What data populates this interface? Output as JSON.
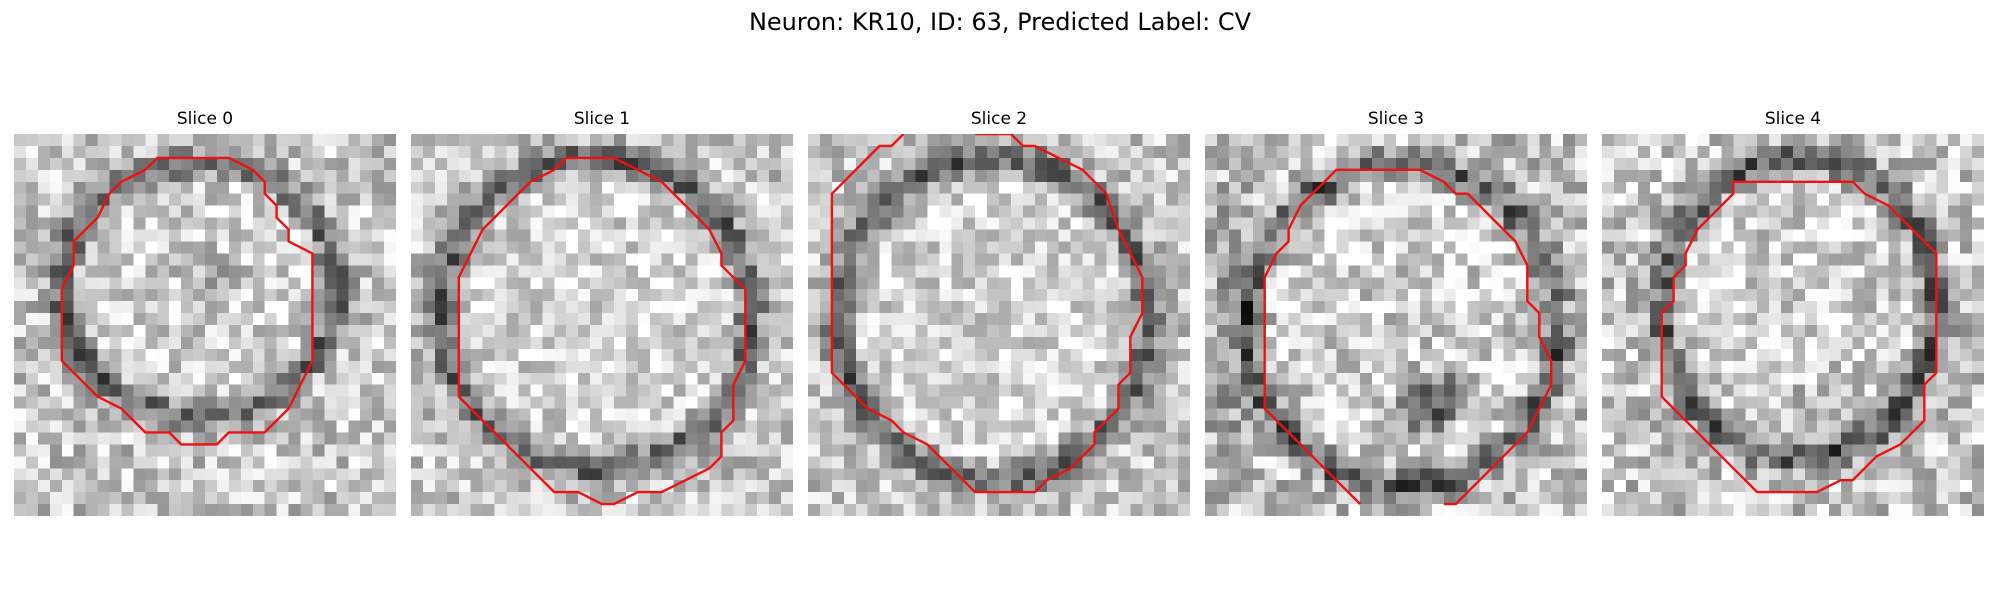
{
  "figure": {
    "title": "Neuron: KR10, ID: 63, Predicted Label: CV"
  },
  "panels": [
    {
      "title": "Slice 0",
      "seed": 11,
      "intensity": 0.28
    },
    {
      "title": "Slice 1",
      "seed": 29,
      "intensity": 0.26
    },
    {
      "title": "Slice 2",
      "seed": 47,
      "intensity": 0.25
    },
    {
      "title": "Slice 3",
      "seed": 71,
      "intensity": 0.32
    },
    {
      "title": "Slice 4",
      "seed": 93,
      "intensity": 0.3
    }
  ],
  "colors": {
    "contour": "#ee1111",
    "background": "#ffffff"
  }
}
